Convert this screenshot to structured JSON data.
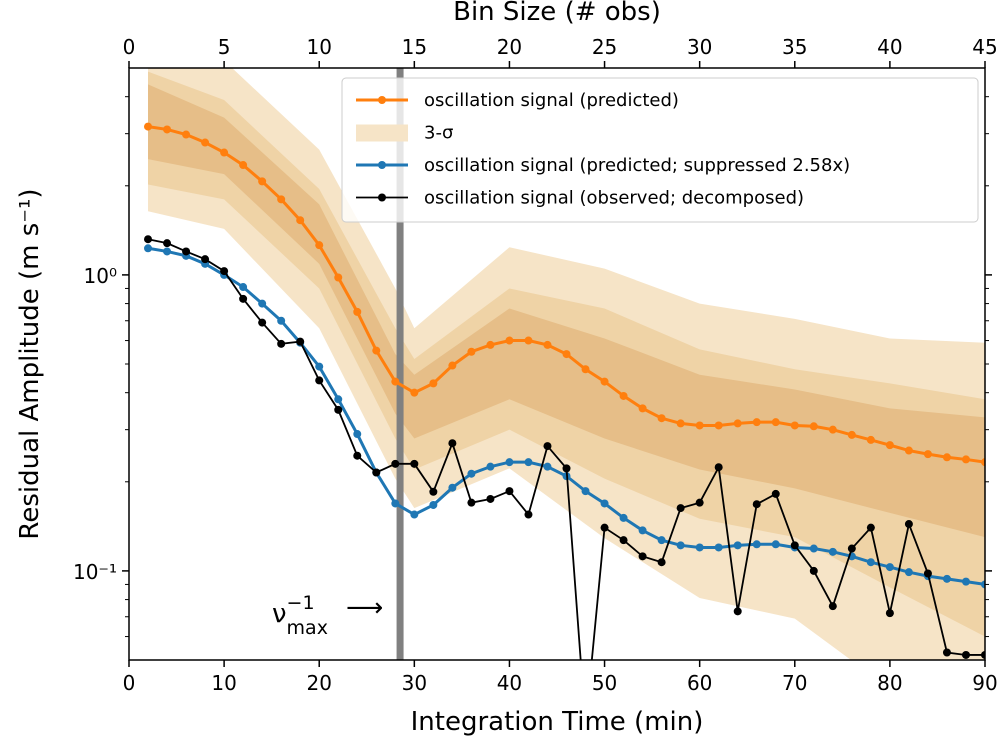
{
  "chart_data": {
    "type": "line",
    "xlabel": "Integration Time (min)",
    "ylabel": "Residual Amplitude (m s⁻¹)",
    "x2label": "Bin Size (# obs)",
    "xlim": [
      0,
      90
    ],
    "xticks": [
      0,
      10,
      20,
      30,
      40,
      50,
      60,
      70,
      80,
      90
    ],
    "x2lim": [
      0,
      45
    ],
    "x2ticks": [
      0,
      5,
      10,
      15,
      20,
      25,
      30,
      35,
      40,
      45
    ],
    "ylim": [
      0.05,
      5
    ],
    "log_y": true,
    "yticks": [
      {
        "value": 0.1,
        "label": "10⁻¹"
      },
      {
        "value": 1,
        "label": "10⁰"
      }
    ],
    "yminorticks": [
      0.06,
      0.07,
      0.08,
      0.09,
      0.2,
      0.3,
      0.4,
      0.5,
      0.6,
      0.7,
      0.8,
      0.9,
      2,
      3,
      4
    ],
    "legend": "upper right",
    "vline": {
      "x": 28.5,
      "color": "#808080"
    },
    "annotation": {
      "base": "ν",
      "sup": "−1",
      "sub": "max",
      "arrow": "⟶"
    },
    "bands": [
      {
        "name": "3-σ",
        "color": "#f6e4c7",
        "x": [
          2,
          10,
          20,
          28,
          30,
          40,
          50,
          60,
          70,
          80,
          90
        ],
        "upper": [
          5.5,
          5.3,
          2.65,
          0.9,
          0.66,
          1.24,
          1.05,
          0.8,
          0.71,
          0.61,
          0.59
        ],
        "lower": [
          1.64,
          1.43,
          0.66,
          0.205,
          0.163,
          0.222,
          0.129,
          0.081,
          0.069,
          0.04,
          0.04
        ]
      },
      {
        "color": "#efd3a6",
        "x": [
          2,
          10,
          20,
          28,
          30,
          40,
          50,
          60,
          70,
          80,
          90
        ],
        "upper": [
          4.86,
          3.9,
          1.95,
          0.66,
          0.52,
          0.9,
          0.77,
          0.56,
          0.48,
          0.43,
          0.38
        ],
        "lower": [
          2.02,
          1.8,
          0.9,
          0.28,
          0.22,
          0.3,
          0.205,
          0.15,
          0.13,
          0.088,
          0.06
        ]
      },
      {
        "color": "#e6be88",
        "x": [
          2,
          10,
          20,
          28,
          30,
          40,
          50,
          60,
          70,
          80,
          90
        ],
        "upper": [
          4.4,
          3.4,
          1.73,
          0.54,
          0.46,
          0.77,
          0.61,
          0.46,
          0.41,
          0.354,
          0.33
        ],
        "lower": [
          2.46,
          2.19,
          1.09,
          0.34,
          0.28,
          0.38,
          0.28,
          0.22,
          0.19,
          0.157,
          0.13
        ]
      }
    ],
    "x": [
      2,
      4,
      6,
      8,
      10,
      12,
      14,
      16,
      18,
      20,
      22,
      24,
      26,
      28,
      30,
      32,
      34,
      36,
      38,
      40,
      42,
      44,
      46,
      48,
      50,
      52,
      54,
      56,
      58,
      60,
      62,
      64,
      66,
      68,
      70,
      72,
      74,
      76,
      78,
      80,
      82,
      84,
      86,
      88,
      90
    ],
    "series": [
      {
        "name": "oscillation signal (predicted)",
        "color": "#ff7f0e",
        "values": [
          3.17,
          3.1,
          2.98,
          2.8,
          2.59,
          2.35,
          2.07,
          1.8,
          1.53,
          1.26,
          0.98,
          0.75,
          0.555,
          0.436,
          0.4,
          0.43,
          0.494,
          0.55,
          0.58,
          0.6,
          0.6,
          0.58,
          0.54,
          0.48,
          0.436,
          0.39,
          0.354,
          0.328,
          0.315,
          0.31,
          0.31,
          0.315,
          0.318,
          0.318,
          0.31,
          0.308,
          0.3,
          0.288,
          0.277,
          0.266,
          0.255,
          0.248,
          0.242,
          0.238,
          0.233
        ]
      },
      {
        "name": "oscillation signal (predicted; suppressed 2.58x)",
        "color": "#1f77b4",
        "values": [
          1.23,
          1.2,
          1.16,
          1.09,
          1.0,
          0.91,
          0.8,
          0.7,
          0.59,
          0.49,
          0.38,
          0.29,
          0.215,
          0.169,
          0.155,
          0.167,
          0.191,
          0.213,
          0.225,
          0.233,
          0.233,
          0.225,
          0.209,
          0.186,
          0.169,
          0.151,
          0.137,
          0.127,
          0.122,
          0.12,
          0.12,
          0.122,
          0.123,
          0.123,
          0.12,
          0.119,
          0.116,
          0.112,
          0.107,
          0.103,
          0.099,
          0.096,
          0.094,
          0.092,
          0.09
        ]
      },
      {
        "name": "oscillation signal (observed; decomposed)",
        "color": "#000000",
        "values": [
          1.32,
          1.28,
          1.2,
          1.13,
          1.03,
          0.83,
          0.69,
          0.585,
          0.595,
          0.44,
          0.35,
          0.245,
          0.215,
          0.23,
          0.23,
          0.185,
          0.27,
          0.17,
          0.175,
          0.186,
          0.155,
          0.264,
          0.222,
          0.03,
          0.14,
          0.127,
          0.112,
          0.107,
          0.163,
          0.17,
          0.224,
          0.073,
          0.168,
          0.182,
          0.122,
          0.1,
          0.076,
          0.119,
          0.14,
          0.072,
          0.144,
          0.098,
          0.053,
          0.052,
          0.052
        ]
      }
    ]
  }
}
